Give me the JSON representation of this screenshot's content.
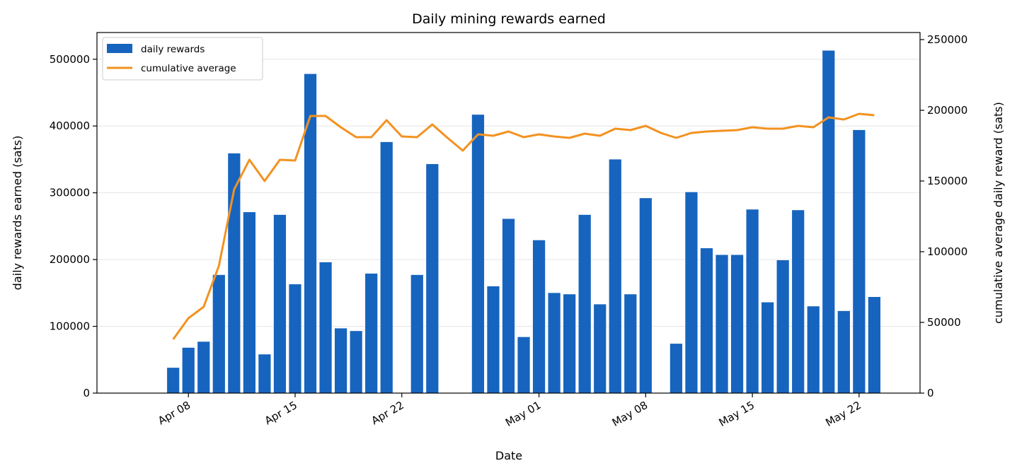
{
  "chart_data": {
    "type": "bar",
    "title": "Daily mining rewards earned",
    "xlabel": "Date",
    "ylabel": "daily rewards earned (sats)",
    "y2label": "cumulative average daily reward (sats)",
    "x_ticks": [
      "Apr 08",
      "Apr 15",
      "Apr 22",
      "May 01",
      "May 08",
      "May 15",
      "May 22"
    ],
    "x_tick_dates": [
      "2024-04-08",
      "2024-04-15",
      "2024-04-22",
      "2024-05-01",
      "2024-05-08",
      "2024-05-15",
      "2024-05-22"
    ],
    "xlim": [
      "2024-04-02",
      "2024-05-26"
    ],
    "ylim": [
      0,
      540000
    ],
    "y_ticks": [
      0,
      100000,
      200000,
      300000,
      400000,
      500000
    ],
    "y2lim": [
      0,
      255000
    ],
    "y2_ticks": [
      0,
      50000,
      100000,
      150000,
      200000,
      250000
    ],
    "grid": "horizontal",
    "legend": "top-left",
    "colors": {
      "bars": "#1764bf",
      "line": "#f39220"
    },
    "series": [
      {
        "name": "daily rewards",
        "type": "bar",
        "axis": "left",
        "points": [
          [
            "2024-04-07",
            38000
          ],
          [
            "2024-04-08",
            68000
          ],
          [
            "2024-04-09",
            77000
          ],
          [
            "2024-04-10",
            177000
          ],
          [
            "2024-04-11",
            359000
          ],
          [
            "2024-04-12",
            271000
          ],
          [
            "2024-04-13",
            58000
          ],
          [
            "2024-04-14",
            267000
          ],
          [
            "2024-04-15",
            163000
          ],
          [
            "2024-04-16",
            478000
          ],
          [
            "2024-04-17",
            196000
          ],
          [
            "2024-04-18",
            97000
          ],
          [
            "2024-04-19",
            93000
          ],
          [
            "2024-04-20",
            179000
          ],
          [
            "2024-04-21",
            376000
          ],
          [
            "2024-04-23",
            177000
          ],
          [
            "2024-04-24",
            343000
          ],
          [
            "2024-04-27",
            417000
          ],
          [
            "2024-04-28",
            160000
          ],
          [
            "2024-04-29",
            261000
          ],
          [
            "2024-04-30",
            84000
          ],
          [
            "2024-05-01",
            229000
          ],
          [
            "2024-05-02",
            150000
          ],
          [
            "2024-05-03",
            148000
          ],
          [
            "2024-05-04",
            267000
          ],
          [
            "2024-05-05",
            133000
          ],
          [
            "2024-05-06",
            350000
          ],
          [
            "2024-05-07",
            148000
          ],
          [
            "2024-05-08",
            292000
          ],
          [
            "2024-05-10",
            74000
          ],
          [
            "2024-05-11",
            301000
          ],
          [
            "2024-05-12",
            217000
          ],
          [
            "2024-05-13",
            207000
          ],
          [
            "2024-05-14",
            207000
          ],
          [
            "2024-05-15",
            275000
          ],
          [
            "2024-05-16",
            136000
          ],
          [
            "2024-05-17",
            199000
          ],
          [
            "2024-05-18",
            274000
          ],
          [
            "2024-05-19",
            130000
          ],
          [
            "2024-05-20",
            513000
          ],
          [
            "2024-05-21",
            123000
          ],
          [
            "2024-05-22",
            394000
          ],
          [
            "2024-05-23",
            144000
          ]
        ]
      },
      {
        "name": "cumulative average",
        "type": "line",
        "axis": "right",
        "points": [
          [
            "2024-04-07",
            38000
          ],
          [
            "2024-04-08",
            53000
          ],
          [
            "2024-04-09",
            61000
          ],
          [
            "2024-04-10",
            90000
          ],
          [
            "2024-04-11",
            144000
          ],
          [
            "2024-04-12",
            165000
          ],
          [
            "2024-04-13",
            150000
          ],
          [
            "2024-04-14",
            165000
          ],
          [
            "2024-04-15",
            164500
          ],
          [
            "2024-04-16",
            196000
          ],
          [
            "2024-04-17",
            196000
          ],
          [
            "2024-04-18",
            188000
          ],
          [
            "2024-04-19",
            181000
          ],
          [
            "2024-04-20",
            181000
          ],
          [
            "2024-04-21",
            193000
          ],
          [
            "2024-04-22",
            181500
          ],
          [
            "2024-04-23",
            181000
          ],
          [
            "2024-04-24",
            190000
          ],
          [
            "2024-04-25",
            180500
          ],
          [
            "2024-04-26",
            171500
          ],
          [
            "2024-04-27",
            183000
          ],
          [
            "2024-04-28",
            182000
          ],
          [
            "2024-04-29",
            185000
          ],
          [
            "2024-04-30",
            181000
          ],
          [
            "2024-05-01",
            183000
          ],
          [
            "2024-05-02",
            181500
          ],
          [
            "2024-05-03",
            180500
          ],
          [
            "2024-05-04",
            183500
          ],
          [
            "2024-05-05",
            182000
          ],
          [
            "2024-05-06",
            187000
          ],
          [
            "2024-05-07",
            186000
          ],
          [
            "2024-05-08",
            189000
          ],
          [
            "2024-05-09",
            184000
          ],
          [
            "2024-05-10",
            180500
          ],
          [
            "2024-05-11",
            184000
          ],
          [
            "2024-05-12",
            185000
          ],
          [
            "2024-05-13",
            185500
          ],
          [
            "2024-05-14",
            186000
          ],
          [
            "2024-05-15",
            188000
          ],
          [
            "2024-05-16",
            187000
          ],
          [
            "2024-05-17",
            187000
          ],
          [
            "2024-05-18",
            189000
          ],
          [
            "2024-05-19",
            188000
          ],
          [
            "2024-05-20",
            195000
          ],
          [
            "2024-05-21",
            193500
          ],
          [
            "2024-05-22",
            197500
          ],
          [
            "2024-05-23",
            196500
          ]
        ]
      }
    ]
  }
}
